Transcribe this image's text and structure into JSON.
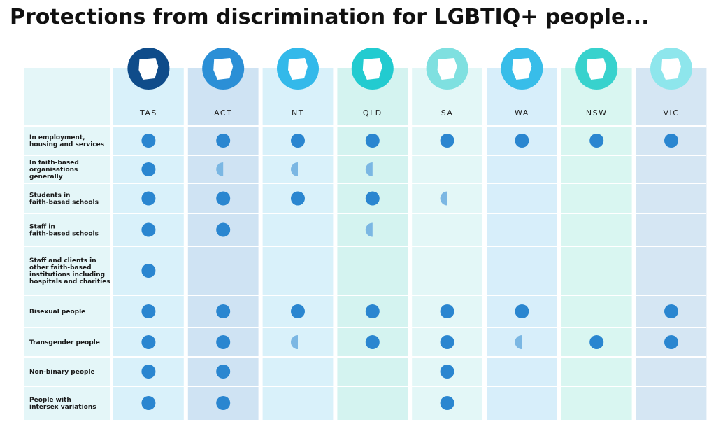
{
  "header": {
    "title": "Protections from discrimination for LGBTIQ+ people..."
  },
  "table": {
    "columns": [
      {
        "label": "TAS",
        "color": "#d9f1fa",
        "icon_color": "#0f4c8a"
      },
      {
        "label": "ACT",
        "color": "#cfe3f3",
        "icon_color": "#2b8fd6"
      },
      {
        "label": "NT",
        "color": "#d9f1fa",
        "icon_color": "#33b9ea"
      },
      {
        "label": "QLD",
        "color": "#d4f3f0",
        "icon_color": "#22cbd0"
      },
      {
        "label": "SA",
        "color": "#e3f7f7",
        "icon_color": "#7fe0e0"
      },
      {
        "label": "WA",
        "color": "#d7eefa",
        "icon_color": "#38bde9"
      },
      {
        "label": "NSW",
        "color": "#d9f6f1",
        "icon_color": "#38d2cd"
      },
      {
        "label": "VIC",
        "color": "#d5e6f3",
        "icon_color": "#8ee6ec"
      }
    ],
    "rows": [
      {
        "label": "In employment,\nhousing and services",
        "cells": [
          1,
          1,
          1,
          1,
          1,
          1,
          1,
          1
        ]
      },
      {
        "label": "In faith-based\norganisations\ngenerally",
        "cells": [
          1,
          0.5,
          0.5,
          0.5,
          0,
          0,
          0,
          0
        ]
      },
      {
        "label": "Students in\nfaith-based schools",
        "cells": [
          1,
          1,
          1,
          1,
          0.5,
          0,
          0,
          0
        ]
      },
      {
        "label": "Staff in\nfaith-based schools",
        "cells": [
          1,
          1,
          0,
          0.5,
          0,
          0,
          0,
          0
        ]
      },
      {
        "label": "Staff and clients in\nother faith-based\ninstitutions including\nhospitals and charities",
        "cells": [
          1,
          0,
          0,
          0,
          0,
          0,
          0,
          0
        ]
      },
      {
        "label": "Bisexual people",
        "cells": [
          1,
          1,
          1,
          1,
          1,
          1,
          0,
          1
        ]
      },
      {
        "label": "Transgender people",
        "cells": [
          1,
          1,
          0.5,
          1,
          1,
          0.5,
          1,
          1
        ]
      },
      {
        "label": "Non-binary people",
        "cells": [
          1,
          1,
          0,
          0,
          1,
          0,
          0,
          0
        ]
      },
      {
        "label": "People with\nintersex variations",
        "cells": [
          1,
          1,
          0,
          0,
          1,
          0,
          0,
          0
        ]
      }
    ],
    "dot_color": "#2a86d0",
    "half_color": "#7bb7e3"
  }
}
